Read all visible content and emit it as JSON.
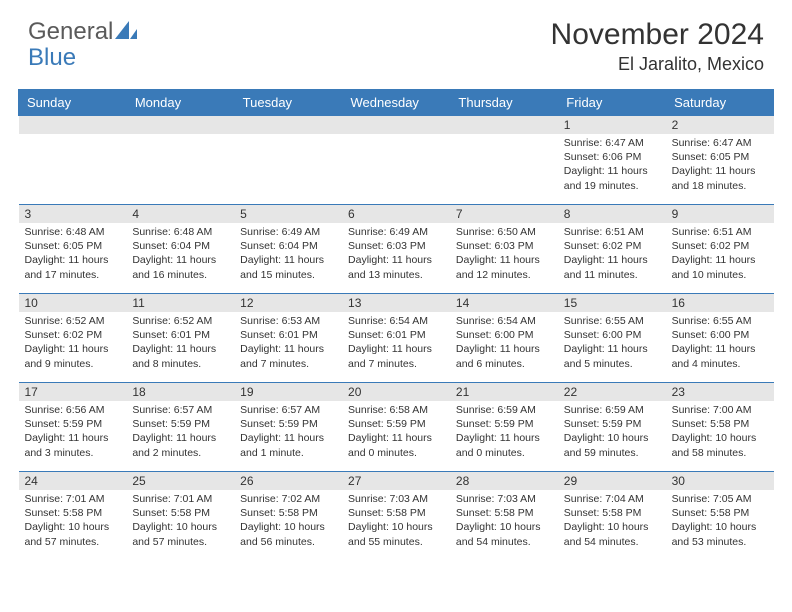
{
  "logo": {
    "text1": "General",
    "text2": "Blue"
  },
  "title": "November 2024",
  "location": "El Jaralito, Mexico",
  "colors": {
    "header_bg": "#3a7ab8",
    "header_fg": "#ffffff",
    "daynum_bg": "#e6e6e6",
    "border": "#3a7ab8"
  },
  "day_names": [
    "Sunday",
    "Monday",
    "Tuesday",
    "Wednesday",
    "Thursday",
    "Friday",
    "Saturday"
  ],
  "weeks": [
    [
      {
        "n": "",
        "sr": "",
        "ss": "",
        "dl": ""
      },
      {
        "n": "",
        "sr": "",
        "ss": "",
        "dl": ""
      },
      {
        "n": "",
        "sr": "",
        "ss": "",
        "dl": ""
      },
      {
        "n": "",
        "sr": "",
        "ss": "",
        "dl": ""
      },
      {
        "n": "",
        "sr": "",
        "ss": "",
        "dl": ""
      },
      {
        "n": "1",
        "sr": "Sunrise: 6:47 AM",
        "ss": "Sunset: 6:06 PM",
        "dl": "Daylight: 11 hours and 19 minutes."
      },
      {
        "n": "2",
        "sr": "Sunrise: 6:47 AM",
        "ss": "Sunset: 6:05 PM",
        "dl": "Daylight: 11 hours and 18 minutes."
      }
    ],
    [
      {
        "n": "3",
        "sr": "Sunrise: 6:48 AM",
        "ss": "Sunset: 6:05 PM",
        "dl": "Daylight: 11 hours and 17 minutes."
      },
      {
        "n": "4",
        "sr": "Sunrise: 6:48 AM",
        "ss": "Sunset: 6:04 PM",
        "dl": "Daylight: 11 hours and 16 minutes."
      },
      {
        "n": "5",
        "sr": "Sunrise: 6:49 AM",
        "ss": "Sunset: 6:04 PM",
        "dl": "Daylight: 11 hours and 15 minutes."
      },
      {
        "n": "6",
        "sr": "Sunrise: 6:49 AM",
        "ss": "Sunset: 6:03 PM",
        "dl": "Daylight: 11 hours and 13 minutes."
      },
      {
        "n": "7",
        "sr": "Sunrise: 6:50 AM",
        "ss": "Sunset: 6:03 PM",
        "dl": "Daylight: 11 hours and 12 minutes."
      },
      {
        "n": "8",
        "sr": "Sunrise: 6:51 AM",
        "ss": "Sunset: 6:02 PM",
        "dl": "Daylight: 11 hours and 11 minutes."
      },
      {
        "n": "9",
        "sr": "Sunrise: 6:51 AM",
        "ss": "Sunset: 6:02 PM",
        "dl": "Daylight: 11 hours and 10 minutes."
      }
    ],
    [
      {
        "n": "10",
        "sr": "Sunrise: 6:52 AM",
        "ss": "Sunset: 6:02 PM",
        "dl": "Daylight: 11 hours and 9 minutes."
      },
      {
        "n": "11",
        "sr": "Sunrise: 6:52 AM",
        "ss": "Sunset: 6:01 PM",
        "dl": "Daylight: 11 hours and 8 minutes."
      },
      {
        "n": "12",
        "sr": "Sunrise: 6:53 AM",
        "ss": "Sunset: 6:01 PM",
        "dl": "Daylight: 11 hours and 7 minutes."
      },
      {
        "n": "13",
        "sr": "Sunrise: 6:54 AM",
        "ss": "Sunset: 6:01 PM",
        "dl": "Daylight: 11 hours and 7 minutes."
      },
      {
        "n": "14",
        "sr": "Sunrise: 6:54 AM",
        "ss": "Sunset: 6:00 PM",
        "dl": "Daylight: 11 hours and 6 minutes."
      },
      {
        "n": "15",
        "sr": "Sunrise: 6:55 AM",
        "ss": "Sunset: 6:00 PM",
        "dl": "Daylight: 11 hours and 5 minutes."
      },
      {
        "n": "16",
        "sr": "Sunrise: 6:55 AM",
        "ss": "Sunset: 6:00 PM",
        "dl": "Daylight: 11 hours and 4 minutes."
      }
    ],
    [
      {
        "n": "17",
        "sr": "Sunrise: 6:56 AM",
        "ss": "Sunset: 5:59 PM",
        "dl": "Daylight: 11 hours and 3 minutes."
      },
      {
        "n": "18",
        "sr": "Sunrise: 6:57 AM",
        "ss": "Sunset: 5:59 PM",
        "dl": "Daylight: 11 hours and 2 minutes."
      },
      {
        "n": "19",
        "sr": "Sunrise: 6:57 AM",
        "ss": "Sunset: 5:59 PM",
        "dl": "Daylight: 11 hours and 1 minute."
      },
      {
        "n": "20",
        "sr": "Sunrise: 6:58 AM",
        "ss": "Sunset: 5:59 PM",
        "dl": "Daylight: 11 hours and 0 minutes."
      },
      {
        "n": "21",
        "sr": "Sunrise: 6:59 AM",
        "ss": "Sunset: 5:59 PM",
        "dl": "Daylight: 11 hours and 0 minutes."
      },
      {
        "n": "22",
        "sr": "Sunrise: 6:59 AM",
        "ss": "Sunset: 5:59 PM",
        "dl": "Daylight: 10 hours and 59 minutes."
      },
      {
        "n": "23",
        "sr": "Sunrise: 7:00 AM",
        "ss": "Sunset: 5:58 PM",
        "dl": "Daylight: 10 hours and 58 minutes."
      }
    ],
    [
      {
        "n": "24",
        "sr": "Sunrise: 7:01 AM",
        "ss": "Sunset: 5:58 PM",
        "dl": "Daylight: 10 hours and 57 minutes."
      },
      {
        "n": "25",
        "sr": "Sunrise: 7:01 AM",
        "ss": "Sunset: 5:58 PM",
        "dl": "Daylight: 10 hours and 57 minutes."
      },
      {
        "n": "26",
        "sr": "Sunrise: 7:02 AM",
        "ss": "Sunset: 5:58 PM",
        "dl": "Daylight: 10 hours and 56 minutes."
      },
      {
        "n": "27",
        "sr": "Sunrise: 7:03 AM",
        "ss": "Sunset: 5:58 PM",
        "dl": "Daylight: 10 hours and 55 minutes."
      },
      {
        "n": "28",
        "sr": "Sunrise: 7:03 AM",
        "ss": "Sunset: 5:58 PM",
        "dl": "Daylight: 10 hours and 54 minutes."
      },
      {
        "n": "29",
        "sr": "Sunrise: 7:04 AM",
        "ss": "Sunset: 5:58 PM",
        "dl": "Daylight: 10 hours and 54 minutes."
      },
      {
        "n": "30",
        "sr": "Sunrise: 7:05 AM",
        "ss": "Sunset: 5:58 PM",
        "dl": "Daylight: 10 hours and 53 minutes."
      }
    ]
  ]
}
